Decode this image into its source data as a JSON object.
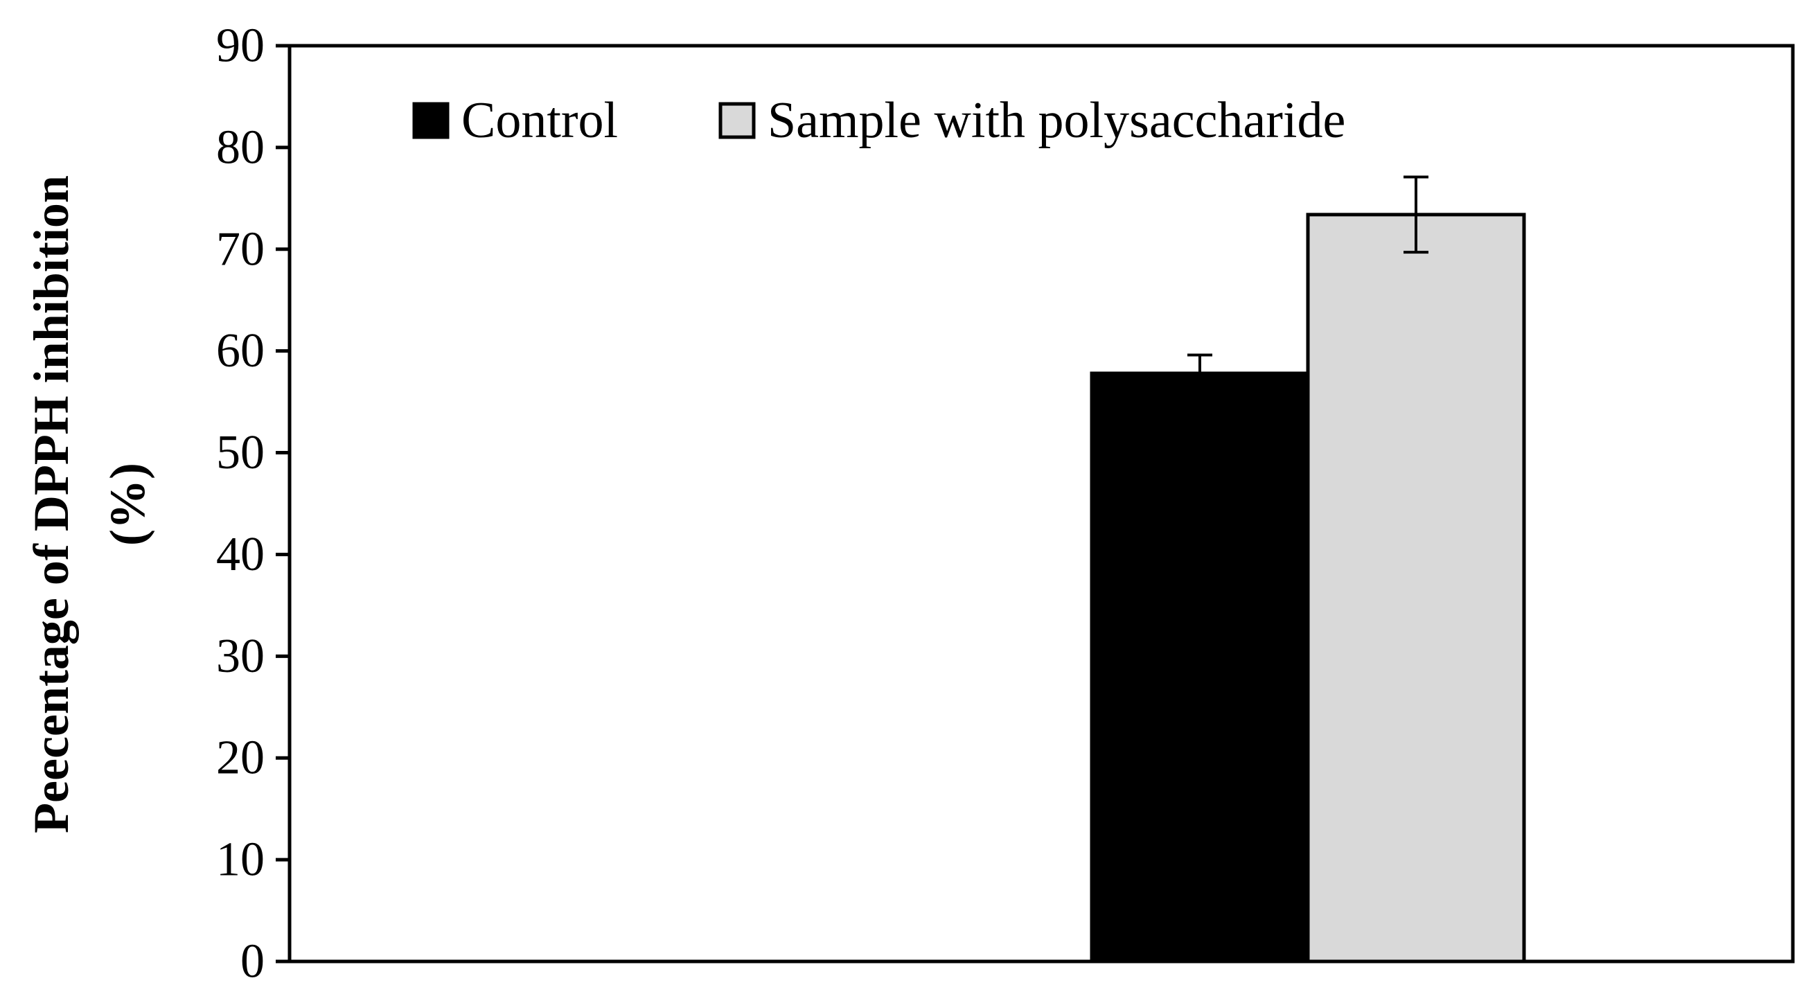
{
  "chart_data": {
    "type": "bar",
    "title": "",
    "xlabel": "",
    "ylabel": "Peecentage of DPPH inhibition (%)",
    "ylabel_lines": [
      "Peecentage of DPPH inhibition",
      "(%)"
    ],
    "ylim": [
      0,
      90
    ],
    "yticks": [
      0,
      10,
      20,
      30,
      40,
      50,
      60,
      70,
      80,
      90
    ],
    "categories": [
      ""
    ],
    "grid": false,
    "legend_position": "top",
    "series": [
      {
        "name": "Control",
        "values": [
          57.8
        ],
        "error": [
          1.8
        ],
        "color": "#000000"
      },
      {
        "name": "Sample with polysaccharide",
        "values": [
          73.4
        ],
        "error": [
          3.7
        ],
        "color": "#d9d9d9"
      }
    ]
  }
}
